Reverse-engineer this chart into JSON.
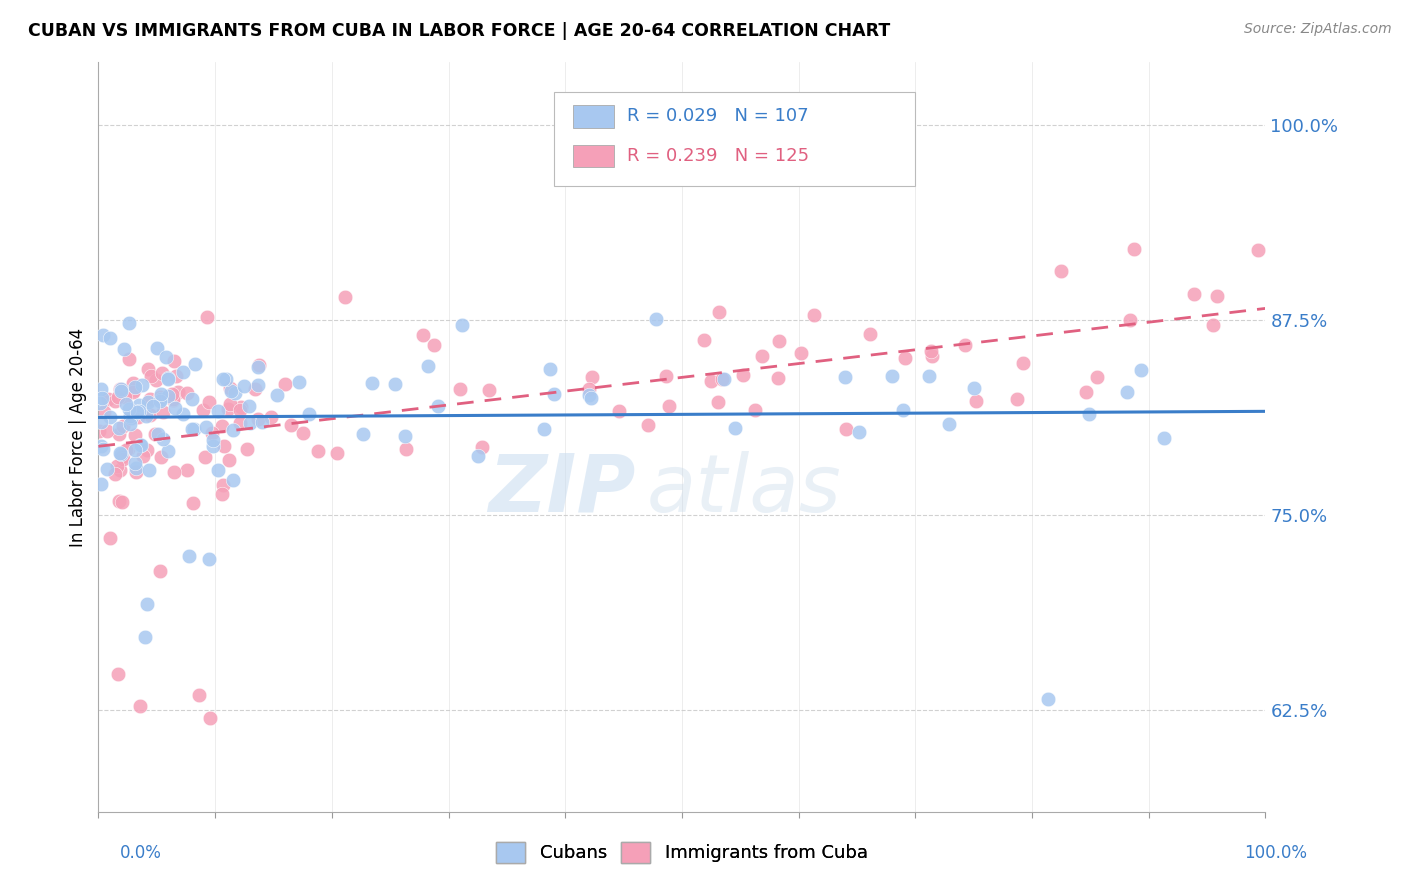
{
  "title": "CUBAN VS IMMIGRANTS FROM CUBA IN LABOR FORCE | AGE 20-64 CORRELATION CHART",
  "source": "Source: ZipAtlas.com",
  "ylabel": "In Labor Force | Age 20-64",
  "yticks": [
    0.625,
    0.75,
    0.875,
    1.0
  ],
  "ytick_labels": [
    "62.5%",
    "75.0%",
    "87.5%",
    "100.0%"
  ],
  "xlim": [
    0.0,
    1.0
  ],
  "ylim": [
    0.56,
    1.04
  ],
  "legend_r1": "R = 0.029",
  "legend_n1": "N = 107",
  "legend_r2": "R = 0.239",
  "legend_n2": "N = 125",
  "legend_label1": "Cubans",
  "legend_label2": "Immigrants from Cuba",
  "color_blue": "#A8C8F0",
  "color_pink": "#F5A0B8",
  "line_color_blue": "#3A7DC9",
  "line_color_pink": "#E06080",
  "text_color_blue": "#3A7DC9",
  "background_color": "#FFFFFF",
  "grid_color": "#CCCCCC",
  "watermark_color": "#C8DCF0"
}
